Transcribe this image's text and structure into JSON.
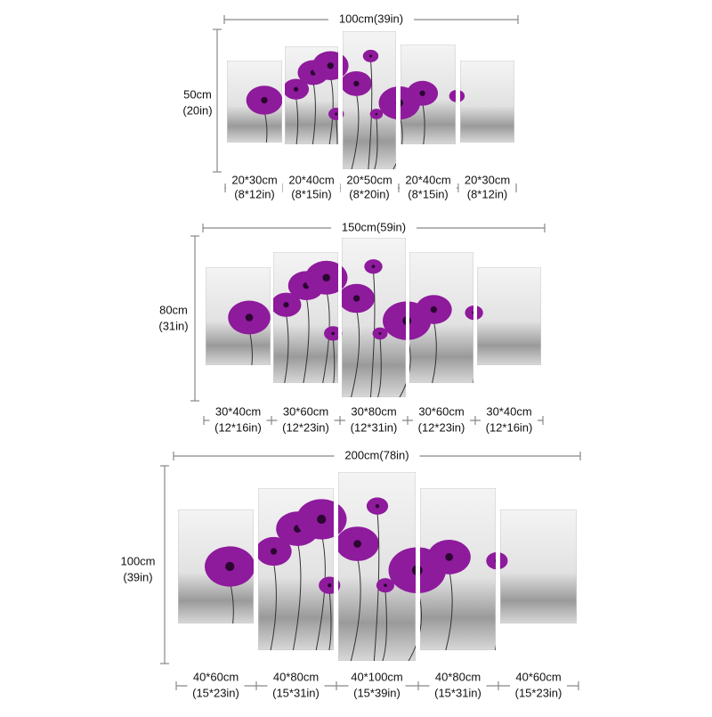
{
  "sets": [
    {
      "width": "100cm(39in)",
      "height": {
        "cm": "50cm",
        "in": "(20in)"
      },
      "panels": [
        {
          "cm": "20*30cm",
          "in": "(8*12in)"
        },
        {
          "cm": "20*40cm",
          "in": "(8*15in)"
        },
        {
          "cm": "20*50cm",
          "in": "(8*20in)"
        },
        {
          "cm": "20*40cm",
          "in": "(8*15in)"
        },
        {
          "cm": "20*30cm",
          "in": "(8*12in)"
        }
      ]
    },
    {
      "width": "150cm(59in)",
      "height": {
        "cm": "80cm",
        "in": "(31in)"
      },
      "panels": [
        {
          "cm": "30*40cm",
          "in": "(12*16in)"
        },
        {
          "cm": "30*60cm",
          "in": "(12*23in)"
        },
        {
          "cm": "30*80cm",
          "in": "(12*31in)"
        },
        {
          "cm": "30*60cm",
          "in": "(12*23in)"
        },
        {
          "cm": "30*40cm",
          "in": "(12*16in)"
        }
      ]
    },
    {
      "width": "200cm(78in)",
      "height": {
        "cm": "100cm",
        "in": "(39in)"
      },
      "panels": [
        {
          "cm": "40*60cm",
          "in": "(15*23in)"
        },
        {
          "cm": "40*80cm",
          "in": "(15*31in)"
        },
        {
          "cm": "40*100cm",
          "in": "(15*39in)"
        },
        {
          "cm": "40*80cm",
          "in": "(15*31in)"
        },
        {
          "cm": "40*60cm",
          "in": "(15*23in)"
        }
      ]
    }
  ]
}
